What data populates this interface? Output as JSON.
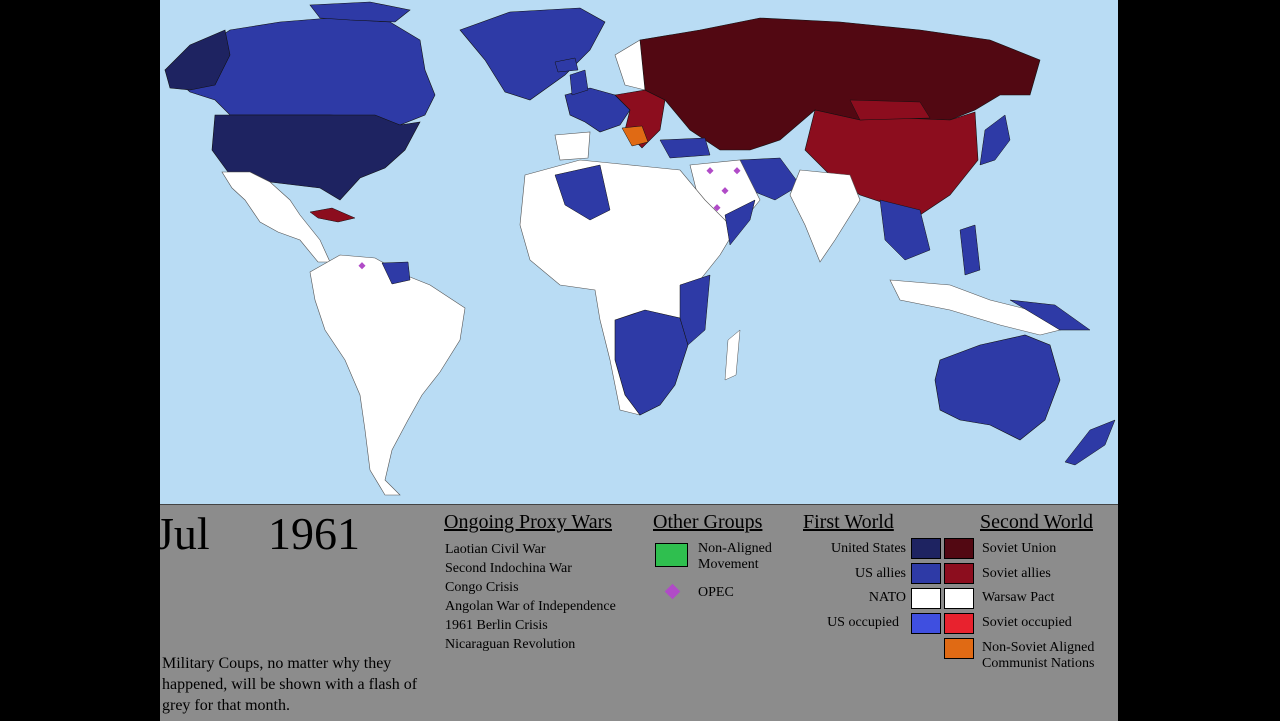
{
  "timeline": {
    "month": "Jul",
    "year": "1961"
  },
  "note": "Military Coups, no matter why they happened, will be shown with a flash of grey for that month.",
  "proxy_wars": {
    "title": "Ongoing Proxy Wars",
    "items": [
      "Laotian Civil War",
      "Second Indochina War",
      "Congo Crisis",
      "Angolan War of Independence",
      "1961 Berlin Crisis",
      "Nicaraguan Revolution"
    ]
  },
  "other_groups": {
    "title": "Other Groups",
    "non_aligned": "Non-Aligned Movement",
    "opec": "OPEC"
  },
  "first_world": {
    "title": "First World",
    "us": "United States",
    "allies": "US allies",
    "nato": "NATO",
    "occupied": "US occupied"
  },
  "second_world": {
    "title": "Second World",
    "soviet_union": "Soviet Union",
    "allies": "Soviet allies",
    "warsaw": "Warsaw Pact",
    "occupied": "Soviet occupied",
    "non_soviet": "Non-Soviet Aligned Communist Nations"
  },
  "colors": {
    "ocean": "#b9dcf4",
    "united_states": "#1e2361",
    "us_allies": "#2e3aa6",
    "nato": "#ffffff",
    "us_occupied": "#3f4fe0",
    "soviet_union": "#520812",
    "soviet_allies": "#8c0d1e",
    "warsaw_pact": "#ffffff",
    "soviet_occupied": "#e8222e",
    "non_soviet_communist": "#e06a14",
    "non_aligned": "#2fbf4f",
    "opec": "#b04bc7",
    "neutral": "#ffffff",
    "panel": "#8c8c8c"
  }
}
